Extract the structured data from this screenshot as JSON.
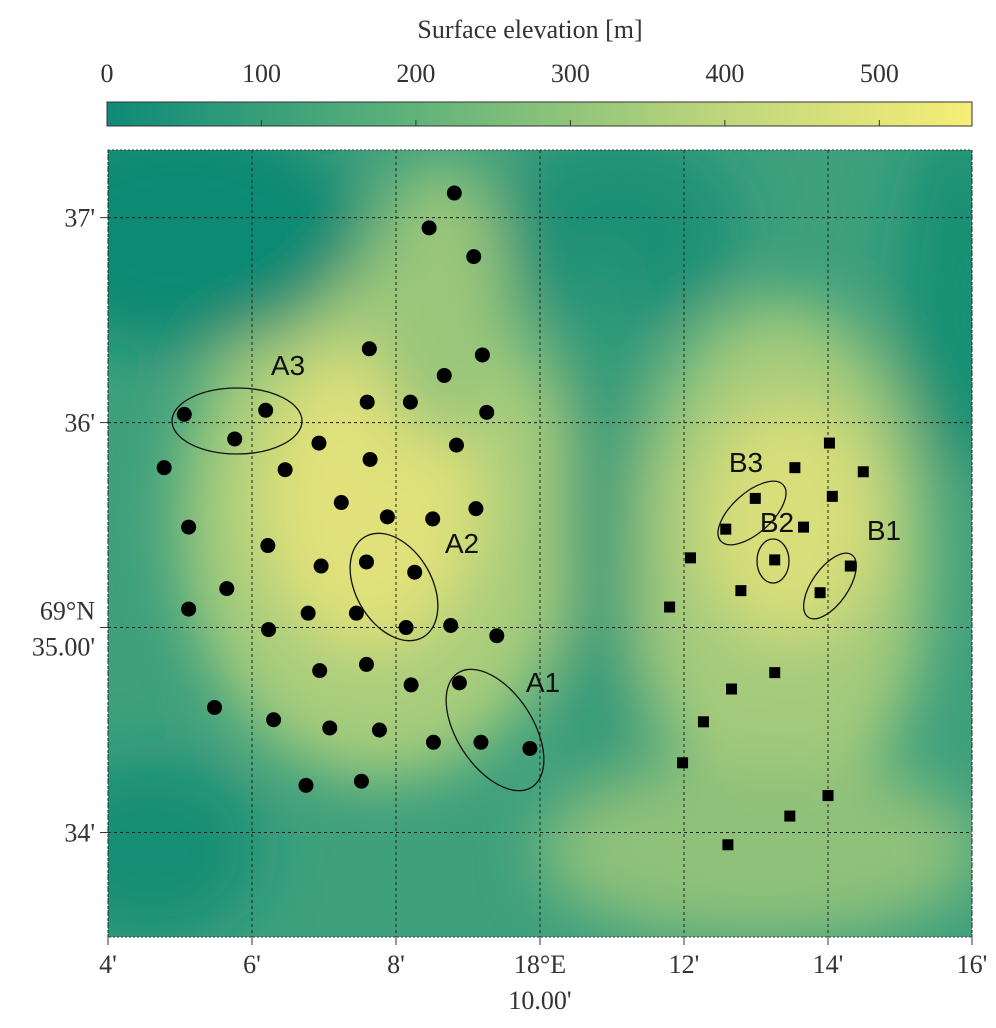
{
  "colorbar": {
    "title": "Surface elevation [m]",
    "lim": [
      0,
      560
    ],
    "ticks": [
      0,
      100,
      200,
      300,
      400,
      500
    ]
  },
  "map": {
    "xlim": [
      4,
      16
    ],
    "ylim": [
      33.49,
      37.33
    ],
    "xticks": [
      4,
      6,
      8,
      {
        "value": 10,
        "label": [
          "18°E",
          "10.00'"
        ]
      },
      12,
      14,
      16
    ],
    "xtick_labels": [
      "4'",
      "6'",
      "8'",
      null,
      "12'",
      "14'",
      "16'"
    ],
    "yticks": [
      34,
      {
        "value": 35,
        "label": [
          "69°N",
          "35.00'"
        ]
      },
      36,
      37
    ],
    "ytick_labels": [
      "34'",
      null,
      "36'",
      "37'"
    ]
  },
  "sites": {
    "circles": {
      "x": [
        8.81,
        8.46,
        9.08,
        7.63,
        9.2,
        8.67,
        5.06,
        6.19,
        7.6,
        8.2,
        9.26,
        5.76,
        6.93,
        8.84,
        4.78,
        6.46,
        7.64,
        7.24,
        9.11,
        7.88,
        8.51,
        5.12,
        6.22,
        7.59,
        6.96,
        8.26,
        5.65,
        5.12,
        6.78,
        7.45,
        8.14,
        8.76,
        6.23,
        9.4,
        6.94,
        7.59,
        8.21,
        8.88,
        5.48,
        6.3,
        7.08,
        7.77,
        8.52,
        9.18,
        9.86,
        6.75,
        7.52
      ],
      "y": [
        37.12,
        36.95,
        36.81,
        36.36,
        36.33,
        36.23,
        36.04,
        36.06,
        36.1,
        36.1,
        36.05,
        35.92,
        35.9,
        35.89,
        35.78,
        35.77,
        35.82,
        35.61,
        35.58,
        35.54,
        35.53,
        35.49,
        35.4,
        35.32,
        35.3,
        35.27,
        35.19,
        35.09,
        35.07,
        35.07,
        35.0,
        35.01,
        34.99,
        34.96,
        34.79,
        34.82,
        34.72,
        34.73,
        34.61,
        34.55,
        34.51,
        34.5,
        34.44,
        34.44,
        34.41,
        34.23,
        34.25
      ]
    },
    "squares": {
      "x": [
        14.02,
        13.54,
        14.49,
        12.99,
        14.06,
        12.58,
        13.66,
        12.09,
        13.26,
        14.31,
        12.79,
        13.89,
        11.8,
        13.26,
        12.66,
        12.27,
        11.98,
        14.0,
        13.47,
        12.61
      ],
      "y": [
        35.9,
        35.78,
        35.76,
        35.63,
        35.64,
        35.48,
        35.49,
        35.34,
        35.33,
        35.3,
        35.18,
        35.17,
        35.1,
        34.78,
        34.7,
        34.54,
        34.34,
        34.18,
        34.08,
        33.94
      ]
    }
  },
  "annotations": [
    "A1",
    "A2",
    "A3",
    "B1",
    "B2",
    "B3"
  ]
}
